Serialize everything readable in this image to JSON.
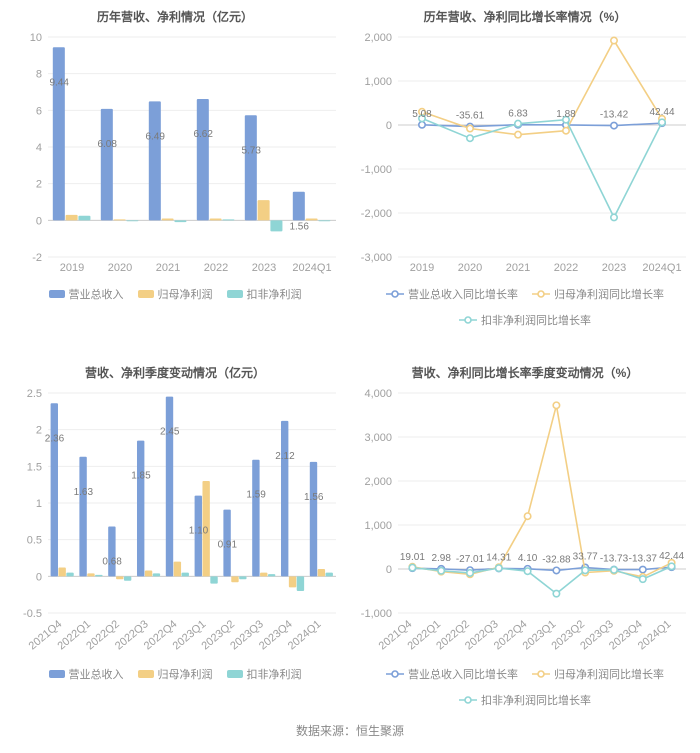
{
  "footer": "数据来源：恒生聚源",
  "colors": {
    "series_blue": "#7c9fd8",
    "series_yellow": "#f3cf85",
    "series_cyan": "#8fd5d5",
    "axis_text": "#a0a0a0",
    "value_text": "#7a7a7a",
    "grid": "#eeeeee",
    "baseline": "#cccccc"
  },
  "charts": {
    "topLeft": {
      "type": "bar",
      "title": "历年营收、净利情况（亿元）",
      "title_fontsize": 13,
      "categories": [
        "2019",
        "2020",
        "2021",
        "2022",
        "2023",
        "2024Q1"
      ],
      "series": [
        {
          "name": "营业总收入",
          "color_key": "series_blue",
          "values": [
            9.44,
            6.08,
            6.49,
            6.62,
            5.73,
            1.56
          ]
        },
        {
          "name": "归母净利润",
          "color_key": "series_yellow",
          "values": [
            0.3,
            0.05,
            0.1,
            0.1,
            1.1,
            0.1
          ]
        },
        {
          "name": "扣非净利润",
          "color_key": "series_cyan",
          "values": [
            0.25,
            -0.05,
            -0.1,
            0.05,
            -0.6,
            -0.05
          ]
        }
      ],
      "ylim": [
        -2,
        10
      ],
      "ytick_step": 2,
      "show_labels_on": 0,
      "bar_group_width": 0.8,
      "legend_style": "rect"
    },
    "topRight": {
      "type": "line",
      "title": "历年营收、净利同比增长率情况（%）",
      "title_fontsize": 13,
      "categories": [
        "2019",
        "2020",
        "2021",
        "2022",
        "2023",
        "2024Q1"
      ],
      "series": [
        {
          "name": "营业总收入同比增长率",
          "color_key": "series_blue",
          "values": [
            5.08,
            -35.61,
            6.83,
            1.88,
            -13.42,
            42.44
          ]
        },
        {
          "name": "归母净利润同比增长率",
          "color_key": "series_yellow",
          "values": [
            300,
            -80,
            -220,
            -130,
            1920,
            140
          ]
        },
        {
          "name": "扣非净利润同比增长率",
          "color_key": "series_cyan",
          "values": [
            150,
            -300,
            30,
            120,
            -2100,
            60
          ]
        }
      ],
      "ylim": [
        -3000,
        2000
      ],
      "ytick_step": 1000,
      "show_labels_on": 0,
      "legend_style": "line"
    },
    "bottomLeft": {
      "type": "bar",
      "title": "营收、净利季度变动情况（亿元）",
      "title_fontsize": 13,
      "categories": [
        "2021Q4",
        "2022Q1",
        "2022Q2",
        "2022Q3",
        "2022Q4",
        "2023Q1",
        "2023Q2",
        "2023Q3",
        "2023Q4",
        "2024Q1"
      ],
      "rotate_x": -40,
      "series": [
        {
          "name": "营业总收入",
          "color_key": "series_blue",
          "values": [
            2.36,
            1.63,
            0.68,
            1.85,
            2.45,
            1.1,
            0.91,
            1.59,
            2.12,
            1.56
          ]
        },
        {
          "name": "归母净利润",
          "color_key": "series_yellow",
          "values": [
            0.12,
            0.04,
            -0.04,
            0.08,
            0.2,
            1.3,
            -0.08,
            0.05,
            -0.15,
            0.1
          ]
        },
        {
          "name": "扣非净利润",
          "color_key": "series_cyan",
          "values": [
            0.05,
            0.02,
            -0.06,
            0.04,
            0.05,
            -0.1,
            -0.04,
            0.03,
            -0.2,
            0.05
          ]
        }
      ],
      "ylim": [
        -0.5,
        2.5
      ],
      "ytick_step": 0.5,
      "show_labels_on": 0,
      "bar_group_width": 0.82,
      "legend_style": "rect"
    },
    "bottomRight": {
      "type": "line",
      "title": "营收、净利同比增长率季度变动情况（%）",
      "title_fontsize": 13,
      "categories": [
        "2021Q4",
        "2022Q1",
        "2022Q2",
        "2022Q3",
        "2022Q4",
        "2023Q1",
        "2023Q2",
        "2023Q3",
        "2023Q4",
        "2024Q1"
      ],
      "rotate_x": -40,
      "series": [
        {
          "name": "营业总收入同比增长率",
          "color_key": "series_blue",
          "values": [
            19.01,
            2.98,
            -27.01,
            14.31,
            4.1,
            -32.88,
            33.77,
            -13.73,
            -13.37,
            42.44
          ]
        },
        {
          "name": "归母净利润同比增长率",
          "color_key": "series_yellow",
          "values": [
            50,
            -60,
            -120,
            40,
            1200,
            3720,
            -80,
            -40,
            -180,
            140
          ]
        },
        {
          "name": "扣非净利润同比增长率",
          "color_key": "series_cyan",
          "values": [
            30,
            -40,
            -90,
            20,
            -50,
            -560,
            -30,
            -20,
            -230,
            60
          ]
        }
      ],
      "ylim": [
        -1000,
        4000
      ],
      "ytick_step": 1000,
      "show_labels_on": 0,
      "legend_style": "line"
    }
  }
}
